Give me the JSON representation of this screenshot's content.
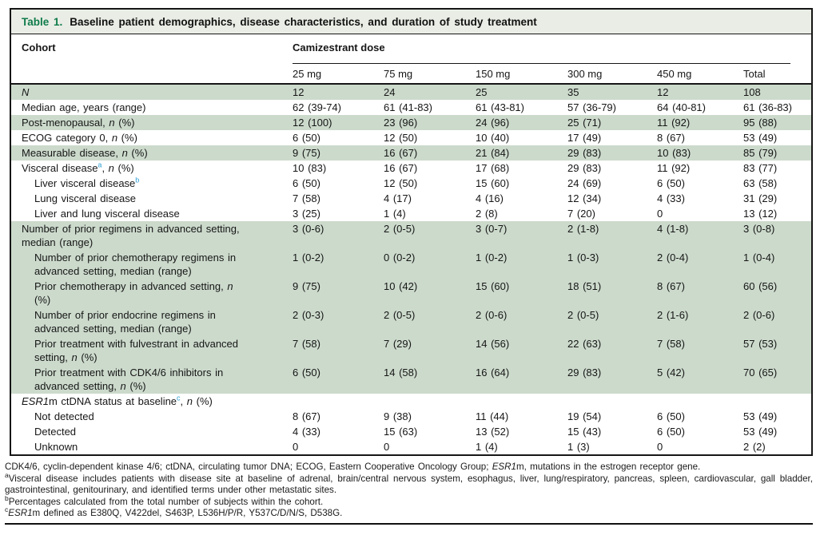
{
  "colors": {
    "row_shade": "#ccdacc",
    "title_bar_bg": "#e9ede5",
    "table_number_green": "#0f7b4b",
    "footnote_ref_blue": "#2e9fd4"
  },
  "table": {
    "title_label": "Table 1.",
    "title_text": "Baseline patient demographics, disease characteristics, and duration of study treatment",
    "header": {
      "cohort_label": "Cohort",
      "dose_group_label": "Camizestrant dose",
      "columns": [
        "25 mg",
        "75 mg",
        "150 mg",
        "300 mg",
        "450 mg",
        "Total"
      ]
    },
    "rows": [
      {
        "label": [
          {
            "t": "N",
            "i": true
          }
        ],
        "indent": 0,
        "shade": true,
        "values": [
          "12",
          "24",
          "25",
          "35",
          "12",
          "108"
        ]
      },
      {
        "label": [
          {
            "t": "Median age, years (range)"
          }
        ],
        "indent": 0,
        "shade": false,
        "values": [
          "62 (39-74)",
          "61 (41-83)",
          "61 (43-81)",
          "57 (36-79)",
          "64 (40-81)",
          "61 (36-83)"
        ]
      },
      {
        "label": [
          {
            "t": "Post-menopausal, "
          },
          {
            "t": "n",
            "i": true
          },
          {
            "t": " (%)"
          }
        ],
        "indent": 0,
        "shade": true,
        "values": [
          "12 (100)",
          "23 (96)",
          "24 (96)",
          "25 (71)",
          "11 (92)",
          "95 (88)"
        ]
      },
      {
        "label": [
          {
            "t": "ECOG category 0, "
          },
          {
            "t": "n",
            "i": true
          },
          {
            "t": " (%)"
          }
        ],
        "indent": 0,
        "shade": false,
        "values": [
          "6 (50)",
          "12 (50)",
          "10 (40)",
          "17 (49)",
          "8 (67)",
          "53 (49)"
        ]
      },
      {
        "label": [
          {
            "t": "Measurable disease, "
          },
          {
            "t": "n",
            "i": true
          },
          {
            "t": " (%)"
          }
        ],
        "indent": 0,
        "shade": true,
        "values": [
          "9 (75)",
          "16 (67)",
          "21 (84)",
          "29 (83)",
          "10 (83)",
          "85 (79)"
        ]
      },
      {
        "label": [
          {
            "t": "Visceral disease"
          },
          {
            "t": "a",
            "sup": true
          },
          {
            "t": ", "
          },
          {
            "t": "n",
            "i": true
          },
          {
            "t": " (%)"
          }
        ],
        "indent": 0,
        "shade": false,
        "values": [
          "10 (83)",
          "16 (67)",
          "17 (68)",
          "29 (83)",
          "11 (92)",
          "83 (77)"
        ]
      },
      {
        "label": [
          {
            "t": "Liver visceral disease"
          },
          {
            "t": "b",
            "sup": true
          }
        ],
        "indent": 1,
        "shade": false,
        "values": [
          "6 (50)",
          "12 (50)",
          "15 (60)",
          "24 (69)",
          "6 (50)",
          "63 (58)"
        ]
      },
      {
        "label": [
          {
            "t": "Lung visceral disease"
          }
        ],
        "indent": 1,
        "shade": false,
        "values": [
          "7 (58)",
          "4 (17)",
          "4 (16)",
          "12 (34)",
          "4 (33)",
          "31 (29)"
        ]
      },
      {
        "label": [
          {
            "t": "Liver and lung visceral disease"
          }
        ],
        "indent": 1,
        "shade": false,
        "values": [
          "3 (25)",
          "1 (4)",
          "2 (8)",
          "7 (20)",
          "0",
          "13 (12)"
        ]
      },
      {
        "label": [
          {
            "t": "Number of prior regimens in advanced setting,"
          },
          {
            "br": true
          },
          {
            "t": "median (range)"
          }
        ],
        "indent": 0,
        "shade": true,
        "values": [
          "3 (0-6)",
          "2 (0-5)",
          "3 (0-7)",
          "2 (1-8)",
          "4 (1-8)",
          "3 (0-8)"
        ]
      },
      {
        "label": [
          {
            "t": "Number of prior chemotherapy regimens in"
          },
          {
            "br": true
          },
          {
            "t": "advanced setting, median (range)"
          }
        ],
        "indent": 1,
        "shade": true,
        "values": [
          "1 (0-2)",
          "0 (0-2)",
          "1 (0-2)",
          "1 (0-3)",
          "2 (0-4)",
          "1 (0-4)"
        ]
      },
      {
        "label": [
          {
            "t": "Prior chemotherapy in advanced setting, "
          },
          {
            "t": "n",
            "i": true
          },
          {
            "br": true
          },
          {
            "t": "(%)"
          }
        ],
        "indent": 1,
        "shade": true,
        "values": [
          "9 (75)",
          "10 (42)",
          "15 (60)",
          "18 (51)",
          "8 (67)",
          "60 (56)"
        ]
      },
      {
        "label": [
          {
            "t": "Number of prior endocrine regimens in"
          },
          {
            "br": true
          },
          {
            "t": "advanced setting, median (range)"
          }
        ],
        "indent": 1,
        "shade": true,
        "values": [
          "2 (0-3)",
          "2 (0-5)",
          "2 (0-6)",
          "2 (0-5)",
          "2 (1-6)",
          "2 (0-6)"
        ]
      },
      {
        "label": [
          {
            "t": "Prior treatment with fulvestrant in advanced"
          },
          {
            "br": true
          },
          {
            "t": "setting, "
          },
          {
            "t": "n",
            "i": true
          },
          {
            "t": " (%)"
          }
        ],
        "indent": 1,
        "shade": true,
        "values": [
          "7 (58)",
          "7 (29)",
          "14 (56)",
          "22 (63)",
          "7 (58)",
          "57 (53)"
        ]
      },
      {
        "label": [
          {
            "t": "Prior treatment with CDK4/6 inhibitors in"
          },
          {
            "br": true
          },
          {
            "t": "advanced setting, "
          },
          {
            "t": "n",
            "i": true
          },
          {
            "t": " (%)"
          }
        ],
        "indent": 1,
        "shade": true,
        "values": [
          "6 (50)",
          "14 (58)",
          "16 (64)",
          "29 (83)",
          "5 (42)",
          "70 (65)"
        ]
      },
      {
        "label": [
          {
            "t": "ESR1",
            "i": true
          },
          {
            "t": "m ctDNA status at baseline"
          },
          {
            "t": "c",
            "sup": true
          },
          {
            "t": ", "
          },
          {
            "t": "n",
            "i": true
          },
          {
            "t": " (%)"
          }
        ],
        "indent": 0,
        "shade": false,
        "values": [
          "",
          "",
          "",
          "",
          "",
          ""
        ]
      },
      {
        "label": [
          {
            "t": "Not detected"
          }
        ],
        "indent": 1,
        "shade": false,
        "values": [
          "8 (67)",
          "9 (38)",
          "11 (44)",
          "19 (54)",
          "6 (50)",
          "53 (49)"
        ]
      },
      {
        "label": [
          {
            "t": "Detected"
          }
        ],
        "indent": 1,
        "shade": false,
        "values": [
          "4 (33)",
          "15 (63)",
          "13 (52)",
          "15 (43)",
          "6 (50)",
          "53 (49)"
        ]
      },
      {
        "label": [
          {
            "t": "Unknown"
          }
        ],
        "indent": 1,
        "shade": false,
        "values": [
          "0",
          "0",
          "1 (4)",
          "1 (3)",
          "0",
          "2 (2)"
        ]
      }
    ]
  },
  "footnotes": [
    [
      {
        "t": "CDK4/6, cyclin-dependent kinase 4/6; ctDNA, circulating tumor DNA; ECOG, Eastern Cooperative Oncology Group; "
      },
      {
        "t": "ESR1",
        "i": true
      },
      {
        "t": "m, mutations in the estrogen receptor gene."
      }
    ],
    [
      {
        "t": "a",
        "sup": true
      },
      {
        "t": "Visceral disease includes patients with disease site at baseline of adrenal, brain/central nervous system, esophagus, liver, lung/respiratory, pancreas, spleen, cardiovascular, gall bladder, gastrointestinal, genitourinary, and identified terms under other metastatic sites."
      }
    ],
    [
      {
        "t": "b",
        "sup": true
      },
      {
        "t": "Percentages calculated from the total number of subjects within the cohort."
      }
    ],
    [
      {
        "t": "c",
        "sup": true
      },
      {
        "t": "ESR1",
        "i": true
      },
      {
        "t": "m defined as E380Q, V422del, S463P, L536H/P/R, Y537C/D/N/S, D538G."
      }
    ]
  ]
}
